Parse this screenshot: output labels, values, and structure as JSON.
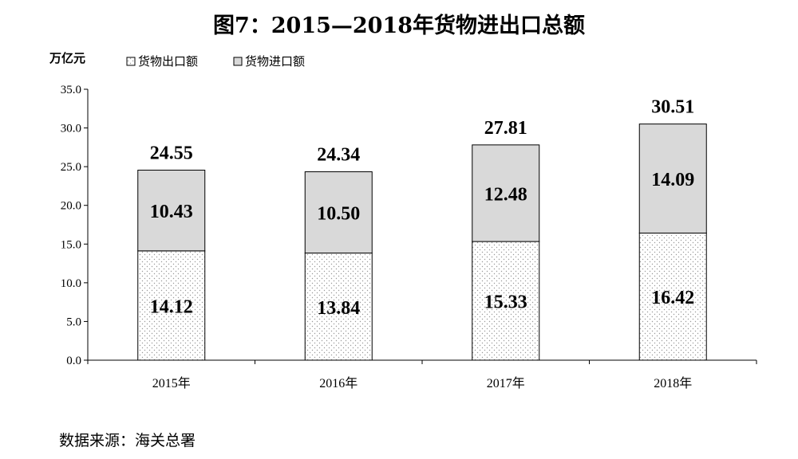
{
  "title": "图7：2015—2018年货物进出口总额",
  "source": "数据来源：海关总署",
  "chart_data": {
    "type": "bar",
    "stacked": true,
    "title": "图7：2015—2018年货物进出口总额",
    "ylabel": "万亿元",
    "xlabel": "",
    "categories": [
      "2015年",
      "2016年",
      "2017年",
      "2018年"
    ],
    "ylim": [
      0,
      35
    ],
    "yticks": [
      "0.0",
      "5.0",
      "10.0",
      "15.0",
      "20.0",
      "25.0",
      "30.0",
      "35.0"
    ],
    "series": [
      {
        "name": "货物出口额",
        "values": [
          14.12,
          13.84,
          15.33,
          16.42
        ],
        "labels": [
          "14.12",
          "13.84",
          "15.33",
          "16.42"
        ],
        "pattern": "dots"
      },
      {
        "name": "货物进口额",
        "values": [
          10.43,
          10.5,
          12.48,
          14.09
        ],
        "labels": [
          "10.43",
          "10.50",
          "12.48",
          "14.09"
        ],
        "color": "#d9d9d9"
      }
    ],
    "totals": [
      24.55,
      24.34,
      27.81,
      30.51
    ],
    "total_labels": [
      "24.55",
      "24.34",
      "27.81",
      "30.51"
    ],
    "grid": false,
    "legend_position": "top-left"
  }
}
